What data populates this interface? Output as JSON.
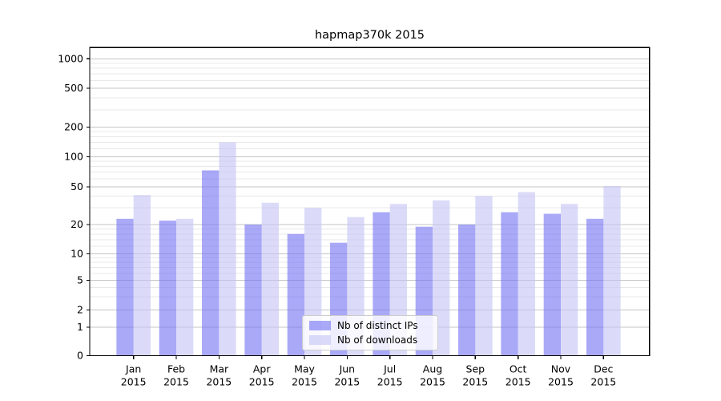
{
  "title": "hapmap370k 2015",
  "colors": {
    "ips_bar": "rgba(112,112,243,0.6)",
    "downloads_bar": "rgba(195,195,245,0.6)",
    "major_grid": "#c6c6c6",
    "minor_grid": "#e8e8e8",
    "spine": "#000000",
    "text": "#000000",
    "legend_border": "#cccccc"
  },
  "legend": {
    "items": [
      {
        "label": "Nb of distinct IPs"
      },
      {
        "label": "Nb of downloads"
      }
    ]
  },
  "chart_data": {
    "type": "bar",
    "title": "hapmap370k 2015",
    "categories": [
      "Jan",
      "Feb",
      "Mar",
      "Apr",
      "May",
      "Jun",
      "Jul",
      "Aug",
      "Sep",
      "Oct",
      "Nov",
      "Dec"
    ],
    "category_year": "2015",
    "series": [
      {
        "name": "Nb of distinct IPs",
        "color": "rgba(112,112,243,0.6)",
        "values": [
          23,
          22,
          73,
          20,
          16,
          13,
          27,
          19,
          20,
          27,
          26,
          23
        ]
      },
      {
        "name": "Nb of downloads",
        "color": "rgba(195,195,245,0.6)",
        "values": [
          41,
          23,
          140,
          34,
          30,
          24,
          33,
          36,
          40,
          44,
          33,
          51
        ]
      }
    ],
    "xlabel": "",
    "ylabel": "",
    "y_axis": {
      "scale": "symlog",
      "range": [
        0,
        1000
      ],
      "major_ticks": [
        0,
        1,
        2,
        5,
        10,
        20,
        50,
        100,
        200,
        500,
        1000
      ],
      "minor_ticks": [
        3,
        4,
        6,
        7,
        8,
        9,
        12,
        14,
        16,
        18,
        30,
        40,
        60,
        70,
        80,
        90,
        120,
        140,
        160,
        180,
        300,
        400,
        600,
        700,
        800,
        900
      ]
    },
    "grid": true,
    "legend_position": "lower center"
  }
}
